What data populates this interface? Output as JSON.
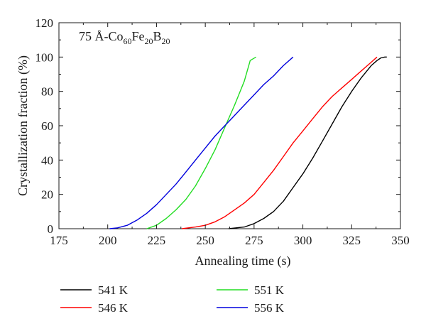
{
  "chart_data": {
    "type": "line",
    "xlabel": "Annealing time (s)",
    "ylabel": "Crystallization fraction (%)",
    "xlim": [
      175,
      350
    ],
    "ylim": [
      0,
      120
    ],
    "xticks": [
      175,
      200,
      225,
      250,
      275,
      300,
      325,
      350
    ],
    "yticks": [
      0,
      20,
      40,
      60,
      80,
      100,
      120
    ],
    "grid": false,
    "legend_position": "bottom",
    "annotation": {
      "prefix": "75 Å-Co",
      "sub1": "60",
      "mid1": "Fe",
      "sub2": "20",
      "mid2": "B",
      "sub3": "20"
    },
    "series": [
      {
        "name": "541 K",
        "color": "#000000",
        "x": [
          262,
          270,
          275,
          280,
          285,
          290,
          295,
          300,
          305,
          310,
          315,
          320,
          325,
          330,
          335,
          338,
          340,
          342,
          343
        ],
        "y": [
          0,
          1,
          3,
          6,
          10,
          16,
          24,
          32,
          41,
          51,
          61,
          71,
          80,
          88,
          95,
          98,
          99.5,
          100,
          100
        ]
      },
      {
        "name": "546 K",
        "color": "#ff0000",
        "x": [
          238,
          245,
          250,
          255,
          260,
          265,
          270,
          275,
          280,
          285,
          290,
          295,
          300,
          305,
          310,
          315,
          320,
          325,
          330,
          335,
          338
        ],
        "y": [
          0,
          1,
          2,
          4,
          7,
          11,
          15,
          20,
          27,
          34,
          42,
          50,
          57,
          64,
          71,
          77,
          82,
          87,
          92,
          97,
          100
        ]
      },
      {
        "name": "551 K",
        "color": "#22dd22",
        "x": [
          220,
          225,
          230,
          235,
          240,
          245,
          250,
          255,
          260,
          265,
          270,
          273,
          276
        ],
        "y": [
          0,
          2,
          6,
          11,
          17,
          25,
          35,
          46,
          59,
          72,
          86,
          98,
          100
        ]
      },
      {
        "name": "556 K",
        "color": "#0000dd",
        "x": [
          201,
          205,
          210,
          215,
          220,
          225,
          230,
          235,
          240,
          245,
          250,
          255,
          260,
          265,
          270,
          275,
          280,
          285,
          290,
          295
        ],
        "y": [
          0,
          0.5,
          2,
          5,
          9,
          14,
          20,
          26,
          33,
          40,
          47,
          54,
          60,
          66,
          72,
          78,
          84,
          89,
          95,
          100
        ]
      }
    ]
  }
}
